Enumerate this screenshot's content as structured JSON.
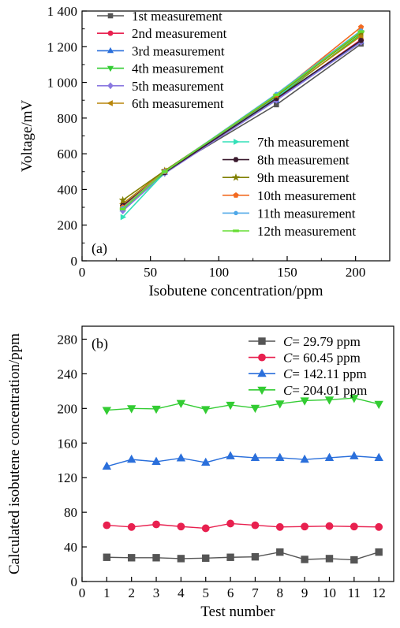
{
  "chart_data": [
    {
      "type": "line",
      "panel_label": "(a)",
      "xlabel": "Isobutene concentration/ppm",
      "ylabel": "Voltage/mV",
      "xlim": [
        0,
        225
      ],
      "ylim": [
        0,
        1400
      ],
      "xticks": [
        0,
        50,
        100,
        150,
        200
      ],
      "yticks": [
        0,
        200,
        400,
        600,
        800,
        1000,
        1200,
        1400
      ],
      "xtick_labels": [
        "0",
        "50",
        "100",
        "150",
        "200"
      ],
      "ytick_labels": [
        "0",
        "200",
        "400",
        "600",
        "800",
        "1 000",
        "1 200",
        "1 400"
      ],
      "x": [
        29.79,
        60.45,
        142.11,
        204.01
      ],
      "legend_position": "split: upper-left (1st-6th), lower-right (7th-12th)",
      "series": [
        {
          "name": "1st measurement",
          "color": "#555555",
          "marker": "square",
          "values": [
            300,
            500,
            875,
            1215
          ]
        },
        {
          "name": "2nd measurement",
          "color": "#e8204f",
          "marker": "circle",
          "values": [
            295,
            500,
            905,
            1240
          ]
        },
        {
          "name": "3rd measurement",
          "color": "#2a6fdb",
          "marker": "triangle-up",
          "values": [
            290,
            495,
            900,
            1230
          ]
        },
        {
          "name": "4th measurement",
          "color": "#33cc33",
          "marker": "triangle-down",
          "values": [
            285,
            490,
            910,
            1270
          ]
        },
        {
          "name": "5th measurement",
          "color": "#8a78e0",
          "marker": "diamond",
          "values": [
            280,
            490,
            900,
            1225
          ]
        },
        {
          "name": "6th measurement",
          "color": "#b8860b",
          "marker": "tri-left",
          "values": [
            320,
            505,
            920,
            1260
          ]
        },
        {
          "name": "7th measurement",
          "color": "#33e0b8",
          "marker": "tri-right",
          "values": [
            245,
            495,
            915,
            1290
          ]
        },
        {
          "name": "8th measurement",
          "color": "#3a1a2e",
          "marker": "hexagon",
          "values": [
            310,
            495,
            910,
            1235
          ]
        },
        {
          "name": "9th measurement",
          "color": "#808000",
          "marker": "star",
          "values": [
            340,
            505,
            925,
            1280
          ]
        },
        {
          "name": "10th measurement",
          "color": "#f26b22",
          "marker": "pentagon",
          "values": [
            300,
            500,
            930,
            1310
          ]
        },
        {
          "name": "11th measurement",
          "color": "#4fa8e8",
          "marker": "dot",
          "values": [
            295,
            500,
            935,
            1290
          ]
        },
        {
          "name": "12th measurement",
          "color": "#66dd33",
          "marker": "dash",
          "values": [
            290,
            500,
            930,
            1285
          ]
        }
      ]
    },
    {
      "type": "line",
      "panel_label": "(b)",
      "xlabel": "Test number",
      "ylabel": "Calculated isobutene concentration/ppm",
      "xlim": [
        0,
        12.6
      ],
      "ylim": [
        0,
        295
      ],
      "xticks": [
        0,
        1,
        2,
        3,
        4,
        5,
        6,
        7,
        8,
        9,
        10,
        11,
        12
      ],
      "yticks": [
        0,
        40,
        80,
        120,
        160,
        200,
        240,
        280
      ],
      "x": [
        1,
        2,
        3,
        4,
        5,
        6,
        7,
        8,
        9,
        10,
        11,
        12
      ],
      "legend_position": "top-right",
      "series": [
        {
          "name_symbol": "C",
          "name": "= 29.79 ppm",
          "color": "#555555",
          "marker": "square",
          "values": [
            28,
            27.5,
            27.5,
            26.5,
            27,
            28,
            28.5,
            34,
            25.5,
            26.5,
            25,
            34
          ]
        },
        {
          "name_symbol": "C",
          "name": "= 60.45 ppm",
          "color": "#e8204f",
          "marker": "circle",
          "values": [
            65,
            63,
            66,
            63.5,
            61.5,
            67,
            65,
            63,
            63.5,
            64,
            63.5,
            63
          ]
        },
        {
          "name_symbol": "C",
          "name": "= 142.11 ppm",
          "color": "#2a6fdb",
          "marker": "triangle-up",
          "values": [
            133,
            141,
            138.5,
            142.5,
            137.5,
            145,
            143,
            143,
            141,
            143,
            145,
            143
          ]
        },
        {
          "name_symbol": "C",
          "name": "= 204.01 ppm",
          "color": "#33cc33",
          "marker": "triangle-down",
          "values": [
            198,
            200,
            199.5,
            206,
            199,
            204,
            200.5,
            205.5,
            209,
            210,
            212,
            205
          ]
        }
      ]
    }
  ]
}
